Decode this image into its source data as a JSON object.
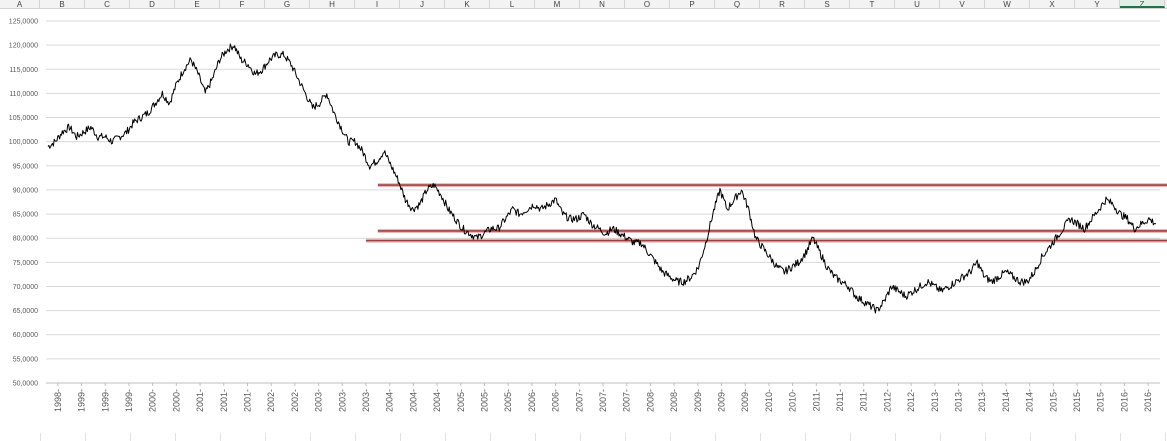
{
  "columns": [
    "A",
    "B",
    "C",
    "D",
    "E",
    "F",
    "G",
    "H",
    "I",
    "J",
    "K",
    "L",
    "M",
    "N",
    "O",
    "P",
    "Q",
    "R",
    "S",
    "T",
    "U",
    "V",
    "W",
    "X",
    "Y",
    "Z"
  ],
  "active_column": "Z",
  "chart_data": {
    "type": "line",
    "title": "",
    "xlabel": "",
    "ylabel": "",
    "ylim": [
      50,
      125
    ],
    "y_ticks": [
      "125,0000",
      "120,0000",
      "115,0000",
      "110,0000",
      "105,0000",
      "100,0000",
      "95,0000",
      "90,0000",
      "85,0000",
      "80,0000",
      "75,0000",
      "70,0000",
      "65,0000",
      "60,0000",
      "55,0000",
      "50,0000"
    ],
    "x_ticks": [
      "1998-",
      "1999-",
      "1999-",
      "1999-",
      "2000-",
      "2000-",
      "2001-",
      "2001-",
      "2001-",
      "2002-",
      "2002-",
      "2003-",
      "2003-",
      "2003-",
      "2004-",
      "2004-",
      "2004-",
      "2005-",
      "2005-",
      "2005-",
      "2006-",
      "2006-",
      "2007-",
      "2007-",
      "2007-",
      "2008-",
      "2008-",
      "2009-",
      "2009-",
      "2009-",
      "2010-",
      "2010-",
      "2011-",
      "2011-",
      "2011-",
      "2012-",
      "2012-",
      "2013-",
      "2013-",
      "2013-",
      "2014-",
      "2014-",
      "2015-",
      "2015-",
      "2015-",
      "2016-",
      "2016-"
    ],
    "grid": true,
    "legend": "none",
    "line_color": "#000000",
    "series": [
      {
        "values": [
          99,
          100,
          102,
          103,
          101,
          102,
          103,
          101,
          101,
          100,
          101,
          102,
          104,
          105,
          106,
          108,
          110,
          108,
          112,
          115,
          117,
          114,
          110,
          113,
          117,
          119,
          120,
          117,
          116,
          114,
          115,
          117,
          118,
          118,
          116,
          113,
          110,
          107,
          108,
          110,
          106,
          103,
          100,
          100,
          98,
          95,
          96,
          98,
          95,
          92,
          88,
          86,
          87,
          90,
          91,
          89,
          86,
          84,
          82,
          81,
          80,
          81,
          82,
          82,
          84,
          86,
          85,
          86,
          87,
          86,
          87,
          88,
          85,
          84,
          84,
          85,
          83,
          82,
          81,
          82,
          81,
          80,
          79,
          79,
          77,
          75,
          73,
          72,
          71,
          71,
          72,
          74,
          79,
          85,
          90,
          86,
          88,
          90,
          86,
          80,
          78,
          76,
          74,
          73,
          74,
          75,
          77,
          80,
          77,
          74,
          72,
          71,
          70,
          68,
          67,
          66,
          65,
          67,
          70,
          69,
          68,
          69,
          70,
          71,
          70,
          69,
          70,
          71,
          72,
          73,
          75,
          72,
          71,
          72,
          73,
          72,
          71,
          71,
          73,
          76,
          78,
          80,
          82,
          84,
          83,
          82,
          84,
          86,
          88,
          87,
          85,
          84,
          82,
          83,
          84,
          83
        ]
      }
    ],
    "lines": [
      {
        "y": 91,
        "x_start_tick": 14,
        "x_end_tick": 46,
        "color": "#a04040"
      },
      {
        "y": 81.5,
        "x_start_tick": 14,
        "x_end_tick": 46,
        "color": "#a04040"
      },
      {
        "y": 79.5,
        "x_start_tick": 13.5,
        "x_end_tick": 46,
        "color": "#a04040"
      }
    ]
  }
}
